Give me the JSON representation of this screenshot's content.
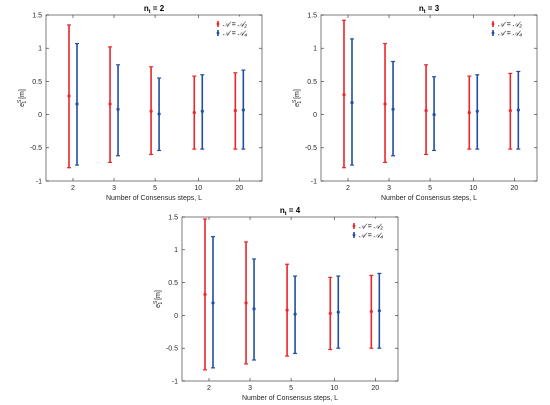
{
  "chart_data": [
    {
      "type": "errorbar",
      "title_main": "n",
      "title_sub": "t",
      "title_rest": " = 2",
      "xlabel": "Number of Consensus steps, L",
      "ylabel_main": "e",
      "ylabel_sup": "S",
      "ylabel_sub": "1",
      "ylabel_unit": " [m]",
      "categories": [
        "2",
        "3",
        "5",
        "10",
        "20"
      ],
      "ylim": [
        -1,
        1.5
      ],
      "yticks": [
        "1.5",
        "1",
        "0.5",
        "0",
        "-0.5",
        "-1"
      ],
      "ytick_values": [
        1.5,
        1,
        0.5,
        0,
        -0.5,
        -1
      ],
      "legend": "top-right",
      "series": [
        {
          "name": "𝒜 = 𝒜₂",
          "color": "#e8262b",
          "mean": [
            0.28,
            0.16,
            0.05,
            0.03,
            0.06
          ],
          "lower": [
            -0.8,
            -0.72,
            -0.6,
            -0.52,
            -0.52
          ],
          "upper": [
            1.35,
            1.02,
            0.72,
            0.58,
            0.63
          ]
        },
        {
          "name": "𝒜 = 𝒜₄",
          "color": "#1f4ea3",
          "mean": [
            0.16,
            0.08,
            0.01,
            0.05,
            0.07
          ],
          "lower": [
            -0.76,
            -0.62,
            -0.54,
            -0.52,
            -0.52
          ],
          "upper": [
            1.07,
            0.75,
            0.55,
            0.6,
            0.67
          ]
        }
      ]
    },
    {
      "type": "errorbar",
      "title_main": "n",
      "title_sub": "t",
      "title_rest": " = 3",
      "xlabel": "Number of Consensus steps, L",
      "ylabel_main": "e",
      "ylabel_sup": "S",
      "ylabel_sub": "1",
      "ylabel_unit": " [m]",
      "categories": [
        "2",
        "3",
        "5",
        "10",
        "20"
      ],
      "ylim": [
        -1,
        1.5
      ],
      "yticks": [
        "1.5",
        "1",
        "0.5",
        "0",
        "-0.5",
        "-1"
      ],
      "ytick_values": [
        1.5,
        1,
        0.5,
        0,
        -0.5,
        -1
      ],
      "legend": "top-right",
      "series": [
        {
          "name": "𝒜 = 𝒜₂",
          "color": "#e8262b",
          "mean": [
            0.3,
            0.16,
            0.06,
            0.03,
            0.06
          ],
          "lower": [
            -0.8,
            -0.72,
            -0.6,
            -0.52,
            -0.52
          ],
          "upper": [
            1.42,
            1.07,
            0.75,
            0.58,
            0.62
          ]
        },
        {
          "name": "𝒜 = 𝒜₄",
          "color": "#1f4ea3",
          "mean": [
            0.18,
            0.08,
            0.0,
            0.05,
            0.07
          ],
          "lower": [
            -0.76,
            -0.62,
            -0.54,
            -0.52,
            -0.52
          ],
          "upper": [
            1.14,
            0.8,
            0.57,
            0.6,
            0.65
          ]
        }
      ]
    },
    {
      "type": "errorbar",
      "title_main": "n",
      "title_sub": "t",
      "title_rest": " = 4",
      "xlabel": "Number of Consensus steps, L",
      "ylabel_main": "e",
      "ylabel_sup": "S",
      "ylabel_sub": "1",
      "ylabel_unit": " [m]",
      "categories": [
        "2",
        "3",
        "5",
        "10",
        "20"
      ],
      "ylim": [
        -1,
        1.5
      ],
      "yticks": [
        "1.5",
        "1",
        "0.5",
        "0",
        "-0.5",
        "-1"
      ],
      "ytick_values": [
        1.5,
        1,
        0.5,
        0,
        -0.5,
        -1
      ],
      "legend": "top-right",
      "series": [
        {
          "name": "𝒜 = 𝒜₂",
          "color": "#e8262b",
          "mean": [
            0.32,
            0.19,
            0.08,
            0.03,
            0.06
          ],
          "lower": [
            -0.83,
            -0.74,
            -0.62,
            -0.52,
            -0.5
          ],
          "upper": [
            1.47,
            1.12,
            0.78,
            0.58,
            0.61
          ]
        },
        {
          "name": "𝒜 = 𝒜₄",
          "color": "#1f4ea3",
          "mean": [
            0.19,
            0.1,
            0.02,
            0.05,
            0.07
          ],
          "lower": [
            -0.8,
            -0.68,
            -0.58,
            -0.5,
            -0.5
          ],
          "upper": [
            1.2,
            0.86,
            0.6,
            0.6,
            0.64
          ]
        }
      ]
    }
  ]
}
